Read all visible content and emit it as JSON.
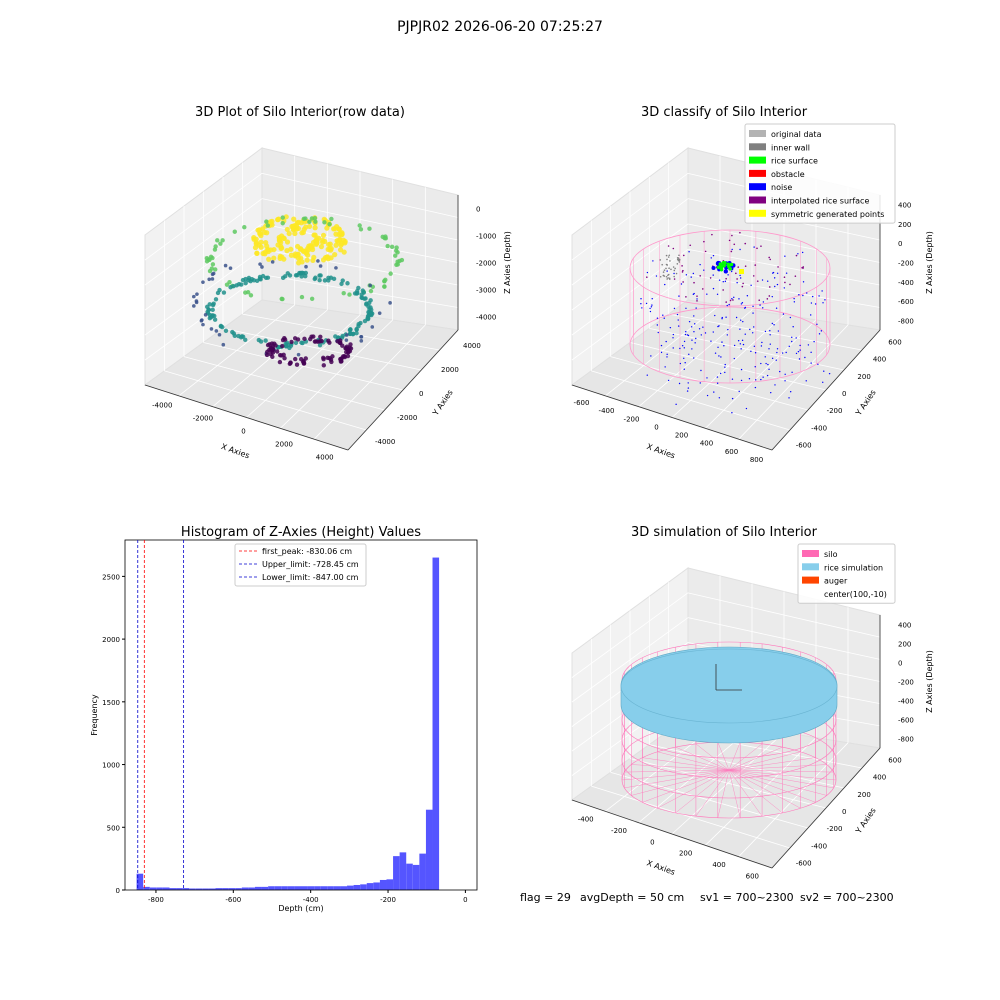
{
  "suptitle": "PJPJR02 2026-06-20 07:25:27",
  "footer": {
    "flag": "flag = 29",
    "avg_depth": "avgDepth = 50 cm",
    "sv1": "sv1 = 700~2300",
    "sv2": "sv2 = 700~2300"
  },
  "chart_data": [
    {
      "type": "scatter",
      "panel": "3d-raw",
      "title": "3D Plot of Silo Interior(row data)",
      "xlabel": "X Axies",
      "ylabel": "Y Axies",
      "zlabel": "Z Axies (Depth)",
      "x_ticks": [
        "-4000",
        "-2000",
        "0",
        "2000",
        "4000"
      ],
      "y_ticks": [
        "-4000",
        "-2000",
        "0",
        "2000",
        "4000"
      ],
      "z_ticks": [
        "-4000",
        "-3000",
        "-2000",
        "-1000",
        "0"
      ],
      "colormap": [
        "#fde725",
        "#5ec962",
        "#21918c",
        "#3b528b",
        "#440154"
      ]
    },
    {
      "type": "scatter",
      "panel": "3d-classify",
      "title": "3D classify of Silo Interior",
      "xlabel": "X Axies",
      "ylabel": "Y Axies",
      "zlabel": "Z Axies (Depth)",
      "x_ticks": [
        "-600",
        "-400",
        "-200",
        "0",
        "200",
        "400",
        "600",
        "800"
      ],
      "y_ticks": [
        "-600",
        "-400",
        "-200",
        "0",
        "200",
        "400",
        "600"
      ],
      "z_ticks": [
        "-800",
        "-600",
        "-400",
        "-200",
        "0",
        "200",
        "400"
      ],
      "legend": [
        {
          "label": "original data",
          "color": "#b3b3b3"
        },
        {
          "label": "inner wall",
          "color": "#808080"
        },
        {
          "label": "rice surface",
          "color": "#00ff00"
        },
        {
          "label": "obstacle",
          "color": "#ff0000"
        },
        {
          "label": "noise",
          "color": "#0000ff"
        },
        {
          "label": "interpolated rice surface",
          "color": "#800080"
        },
        {
          "label": "symmetric generated points",
          "color": "#ffff00"
        }
      ]
    },
    {
      "type": "bar",
      "panel": "histogram",
      "title": "Histogram of Z-Axies (Height) Values",
      "xlabel": "Depth (cm)",
      "ylabel": "Frequency",
      "xlim": [
        -880,
        30
      ],
      "ylim": [
        0,
        2790
      ],
      "x_ticks": [
        -800,
        -600,
        -400,
        -200,
        0
      ],
      "y_ticks": [
        0,
        500,
        1000,
        1500,
        2000,
        2500
      ],
      "bar_color": "#5555ff",
      "bin_width": 17,
      "bin_start": -850,
      "values": [
        130,
        25,
        20,
        20,
        20,
        15,
        15,
        15,
        12,
        12,
        12,
        12,
        15,
        15,
        15,
        15,
        20,
        20,
        25,
        25,
        30,
        30,
        30,
        30,
        30,
        30,
        30,
        30,
        30,
        30,
        30,
        30,
        35,
        40,
        45,
        55,
        60,
        80,
        85,
        270,
        300,
        210,
        200,
        290,
        640,
        2650
      ],
      "vlines": [
        {
          "label": "first_peak: -830.06 cm",
          "x": -830.06,
          "color": "#ff0000"
        },
        {
          "label": "Upper_limit: -728.45 cm",
          "x": -728.45,
          "color": "#0000cc"
        },
        {
          "label": "Lower_limit: -847.00 cm",
          "x": -847.0,
          "color": "#0000cc"
        }
      ]
    },
    {
      "type": "scatter",
      "panel": "3d-simulation",
      "title": "3D simulation of Silo Interior",
      "xlabel": "X Axies",
      "ylabel": "Y Axies",
      "zlabel": "Z Axies (Depth)",
      "x_ticks": [
        "-400",
        "-200",
        "0",
        "200",
        "400",
        "600"
      ],
      "y_ticks": [
        "-600",
        "-400",
        "-200",
        "0",
        "200",
        "400",
        "600"
      ],
      "z_ticks": [
        "-800",
        "-600",
        "-400",
        "-200",
        "0",
        "200",
        "400"
      ],
      "legend": [
        {
          "label": "silo",
          "color": "#ff69b4"
        },
        {
          "label": "rice simulation",
          "color": "#87ceeb"
        },
        {
          "label": "auger",
          "color": "#ff4500"
        },
        {
          "label": "center(100,-10)",
          "color": ""
        }
      ]
    }
  ]
}
